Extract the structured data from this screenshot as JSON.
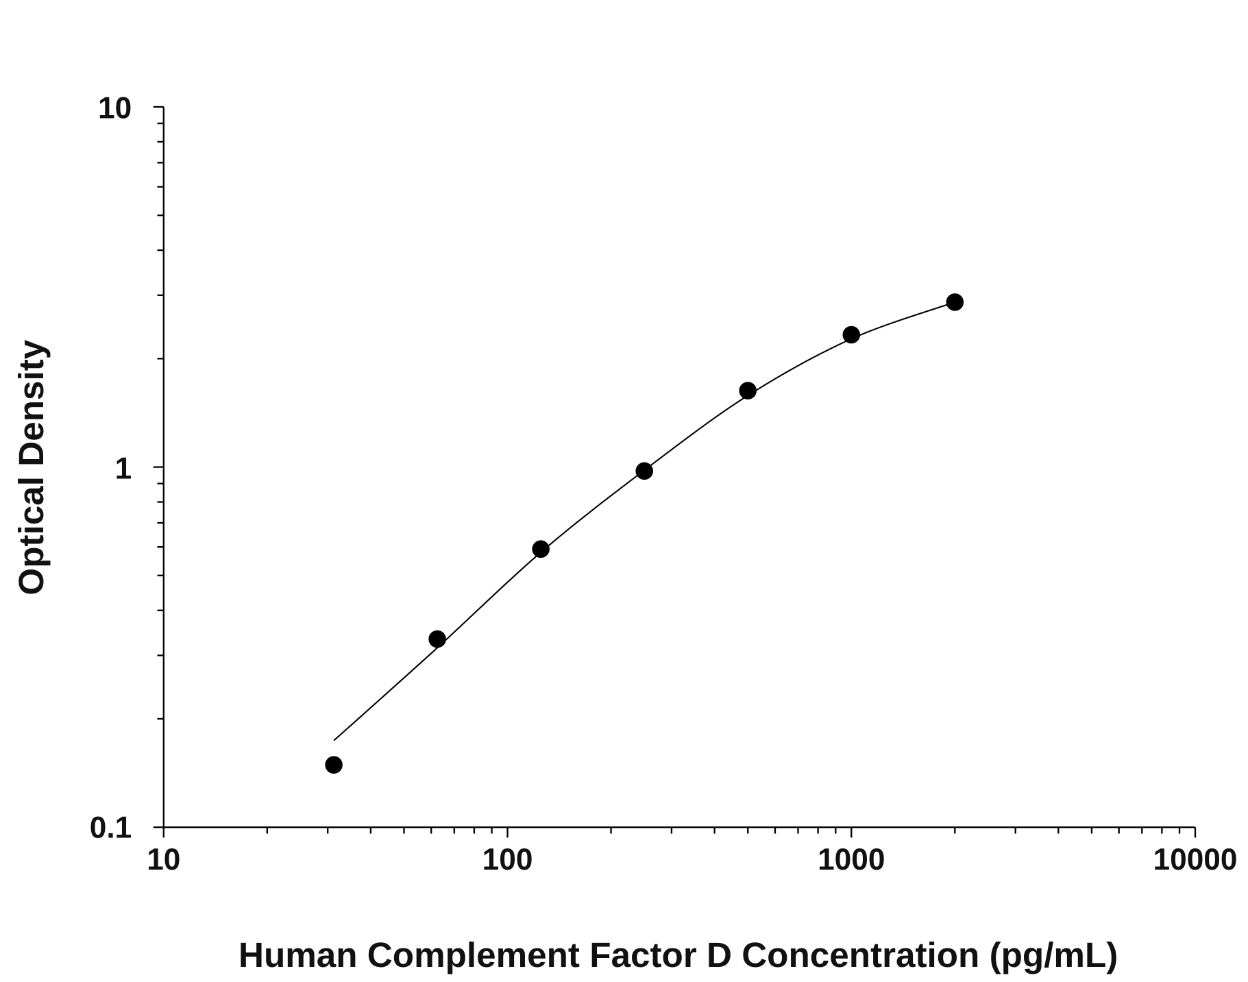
{
  "chart_data": {
    "type": "scatter",
    "title": "",
    "xlabel": "Human Complement Factor D Concentration (pg/mL)",
    "ylabel": "Optical Density",
    "x_scale": "log",
    "y_scale": "log",
    "xlim": [
      10,
      10000
    ],
    "ylim": [
      0.1,
      10
    ],
    "x_ticks": [
      "10",
      "100",
      "1000",
      "10000"
    ],
    "y_ticks": [
      "0.1",
      "1",
      "10"
    ],
    "grid": false,
    "series": [
      {
        "x": [
          31.25,
          62.5,
          125,
          250,
          500,
          1000,
          2000
        ],
        "y": [
          0.149,
          0.333,
          0.592,
          0.975,
          1.63,
          2.33,
          2.87
        ]
      }
    ],
    "fit_curve": {
      "x": [
        31.25,
        62.5,
        125,
        250,
        500,
        1000,
        2000
      ],
      "y": [
        0.174,
        0.315,
        0.58,
        0.98,
        1.58,
        2.27,
        2.87
      ]
    },
    "colors": {
      "marker": "#000000",
      "line": "#000000"
    }
  }
}
